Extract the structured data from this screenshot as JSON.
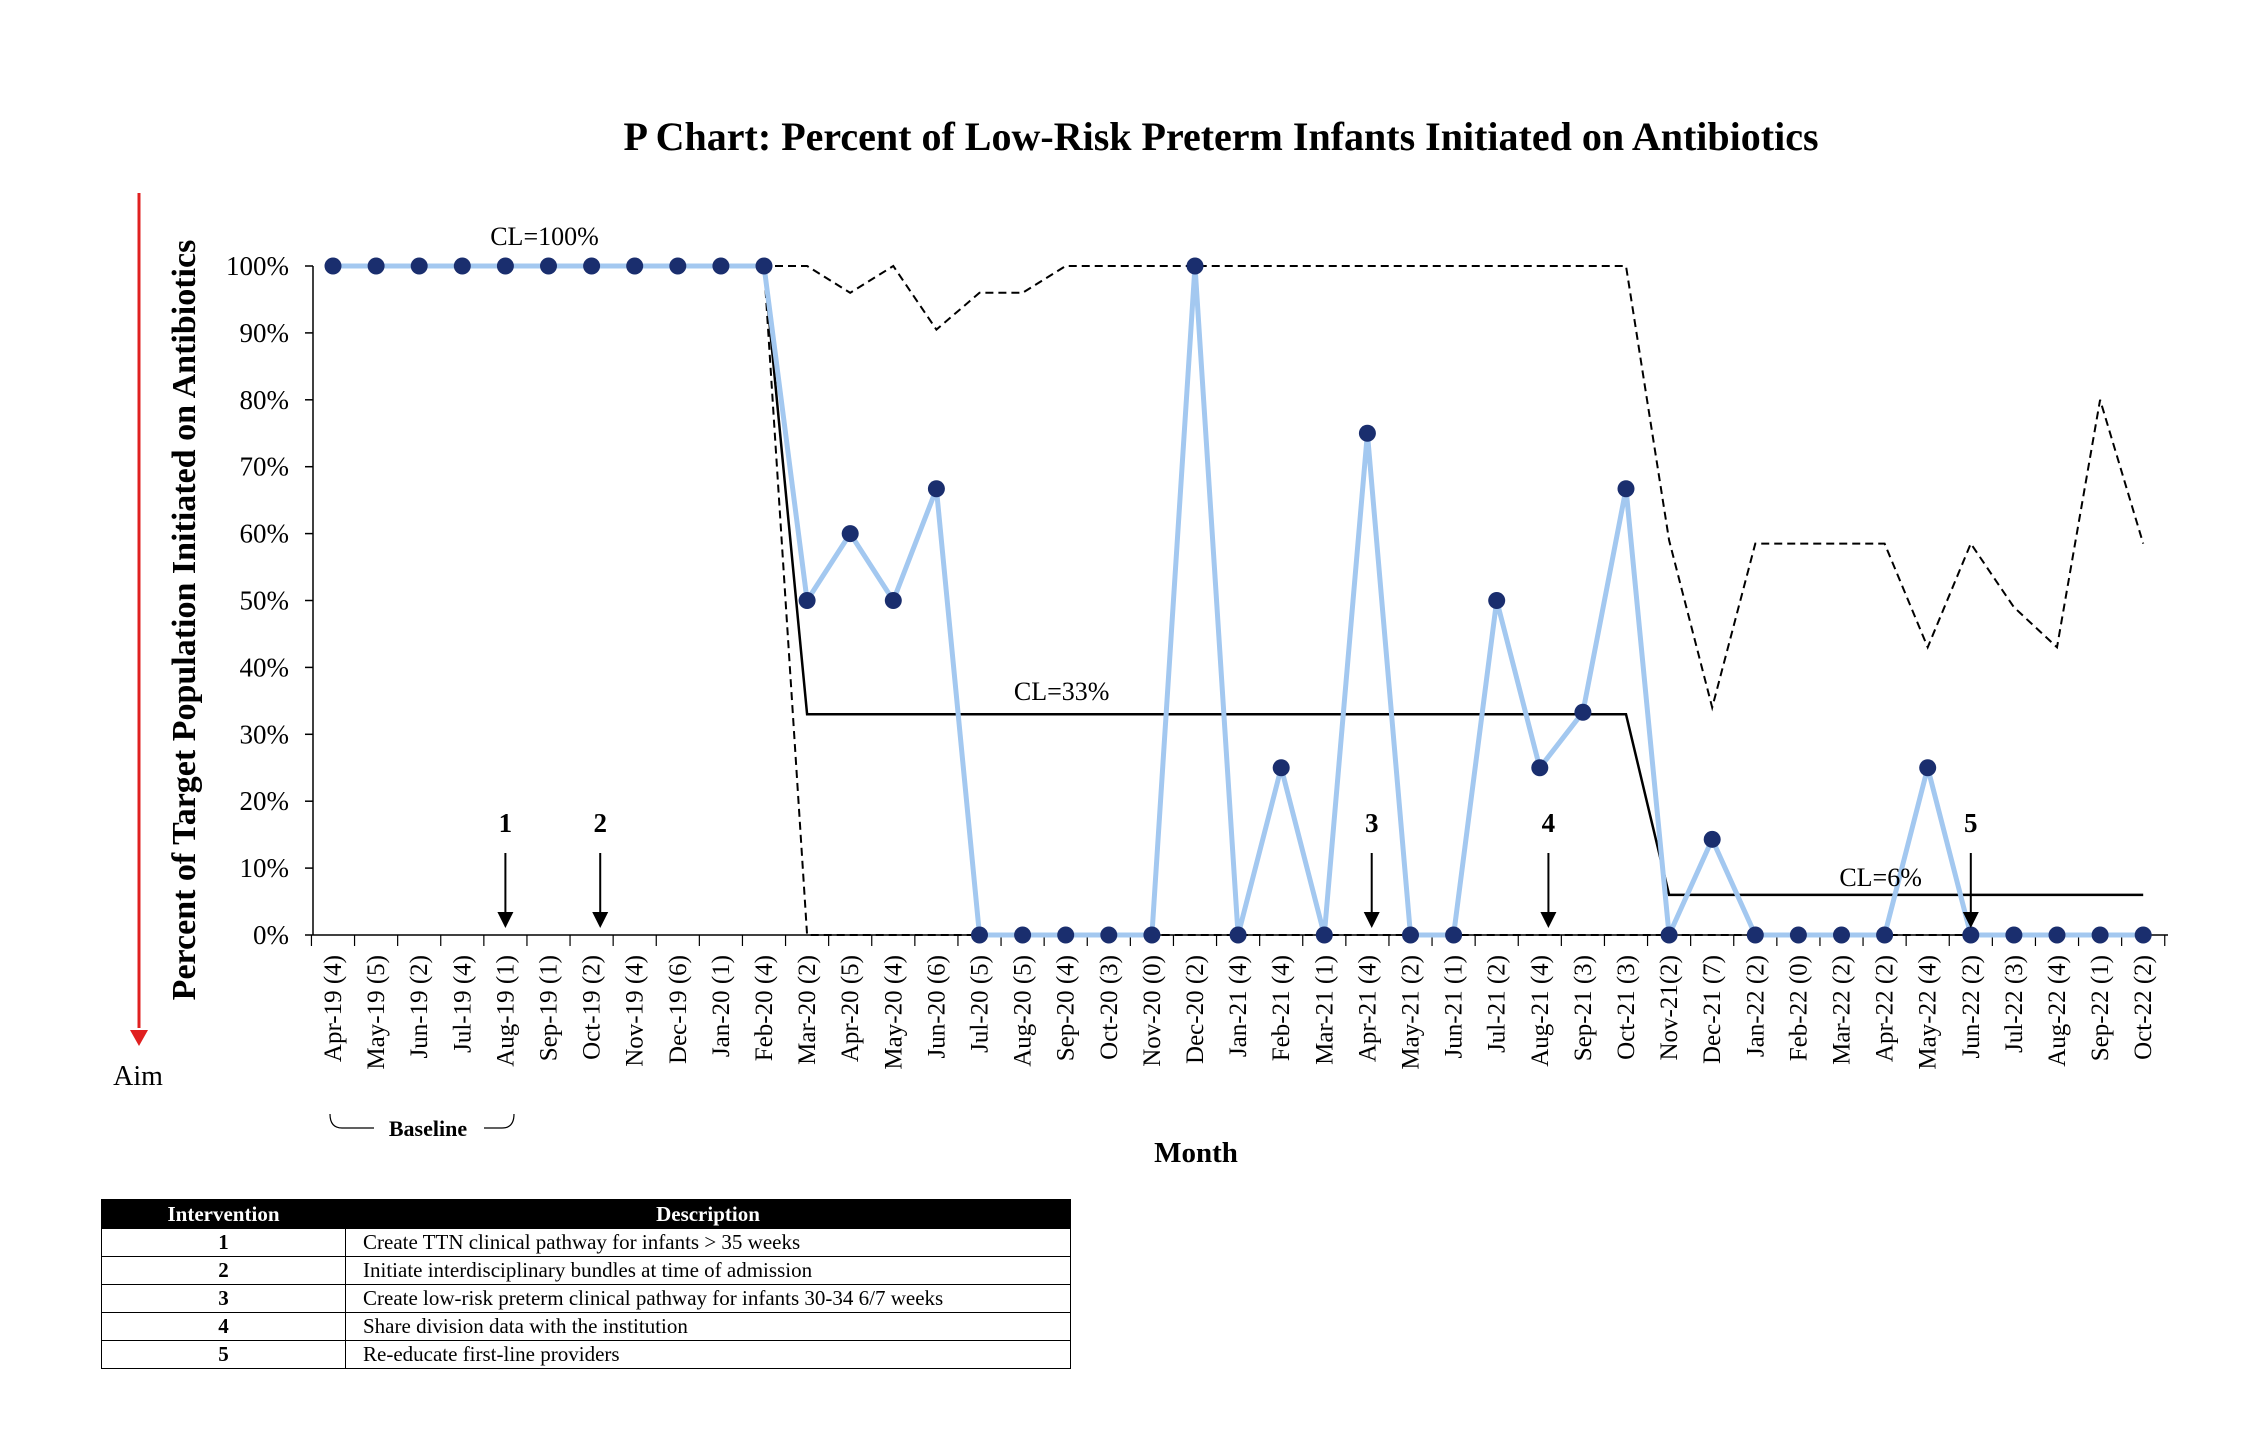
{
  "chart_data": {
    "type": "line",
    "title": "P Chart: Percent of Low-Risk Preterm Infants Initiated on Antibiotics",
    "xlabel": "Month",
    "ylabel": "Percent of  Target Population Initiated on Antibiotics",
    "ylim": [
      0,
      100
    ],
    "yticks": [
      "0%",
      "10%",
      "20%",
      "30%",
      "40%",
      "50%",
      "60%",
      "70%",
      "80%",
      "90%",
      "100%"
    ],
    "categories": [
      "Apr-19 (4)",
      "May-19 (5)",
      "Jun-19 (2)",
      "Jul-19 (4)",
      "Aug-19 (1)",
      "Sep-19 (1)",
      "Oct-19 (2)",
      "Nov-19 (4)",
      "Dec-19 (6)",
      "Jan-20 (1)",
      "Feb-20 (4)",
      "Mar-20 (2)",
      "Apr-20 (5)",
      "May-20 (4)",
      "Jun-20 (6)",
      "Jul-20 (5)",
      "Aug-20 (5)",
      "Sep-20 (4)",
      "Oct-20 (3)",
      "Nov-20 (0)",
      "Dec-20 (2)",
      "Jan-21 (4)",
      "Feb-21 (4)",
      "Mar-21 (1)",
      "Apr-21 (4)",
      "May-21 (2)",
      "Jun-21 (1)",
      "Jul-21 (2)",
      "Aug-21 (4)",
      "Sep-21 (3)",
      "Oct-21 (3)",
      "Nov-21(2)",
      "Dec-21 (7)",
      "Jan-22 (2)",
      "Feb-22 (0)",
      "Mar-22 (2)",
      "Apr-22 (2)",
      "May-22 (4)",
      "Jun-22 (2)",
      "Jul-22 (3)",
      "Aug-22 (4)",
      "Sep-22 (1)",
      "Oct-22 (2)"
    ],
    "series": [
      {
        "role": "percent",
        "color": "#a3c8f0",
        "marker_color": "#1a2e6e",
        "values": [
          100,
          100,
          100,
          100,
          100,
          100,
          100,
          100,
          100,
          100,
          100,
          50,
          60,
          50,
          66.7,
          0,
          0,
          0,
          0,
          0,
          100,
          0,
          25,
          0,
          75,
          0,
          0,
          50,
          25,
          33.3,
          66.7,
          0,
          14.3,
          0,
          0,
          0,
          0,
          25,
          0,
          0,
          0,
          0,
          0
        ]
      },
      {
        "role": "center-line",
        "color": "#000000",
        "values": [
          100,
          100,
          100,
          100,
          100,
          100,
          100,
          100,
          100,
          100,
          100,
          33,
          33,
          33,
          33,
          33,
          33,
          33,
          33,
          33,
          33,
          33,
          33,
          33,
          33,
          33,
          33,
          33,
          33,
          33,
          33,
          6,
          6,
          6,
          6,
          6,
          6,
          6,
          6,
          6,
          6,
          6,
          6
        ]
      },
      {
        "role": "upper-control-limit",
        "color": "#000000",
        "dash": true,
        "values": [
          100,
          100,
          100,
          100,
          100,
          100,
          100,
          100,
          100,
          100,
          100,
          100,
          96,
          100,
          90.5,
          96,
          96,
          100,
          100,
          100,
          100,
          100,
          100,
          100,
          100,
          100,
          100,
          100,
          100,
          100,
          100,
          59,
          34,
          58.5,
          58.5,
          58.5,
          58.5,
          43,
          58.5,
          49,
          43,
          80,
          58.5
        ]
      },
      {
        "role": "lower-control-limit",
        "color": "#000000",
        "dash": true,
        "values": [
          100,
          100,
          100,
          100,
          100,
          100,
          100,
          100,
          100,
          100,
          100,
          0,
          0,
          0,
          0,
          0,
          0,
          0,
          0,
          0,
          0,
          0,
          0,
          0,
          0,
          0,
          0,
          0,
          0,
          0,
          0,
          0,
          0,
          0,
          0,
          0,
          0,
          0,
          0,
          0,
          0,
          0,
          0
        ]
      }
    ],
    "center_line_labels": [
      {
        "text": "CL=100%",
        "index": 5,
        "y": 104.5
      },
      {
        "text": "CL=33%",
        "index": 17,
        "y": 36.5
      },
      {
        "text": "CL=6%",
        "index": 36,
        "y": 8.7
      }
    ],
    "intervention_markers": [
      {
        "label": "1",
        "index": 4
      },
      {
        "label": "2",
        "index": 6.2
      },
      {
        "label": "3",
        "index": 24.1
      },
      {
        "label": "4",
        "index": 28.2
      },
      {
        "label": "5",
        "index": 38
      }
    ],
    "aim_label": "Aim",
    "aim_color": "#e02020",
    "baseline_label": "Baseline"
  },
  "table": {
    "headers": [
      "Intervention",
      "Description"
    ],
    "rows": [
      {
        "num": "1",
        "desc": "Create TTN clinical pathway for infants >  35 weeks"
      },
      {
        "num": "2",
        "desc": "Initiate interdisciplinary bundles at time of admission"
      },
      {
        "num": "3",
        "desc": "Create low-risk preterm clinical pathway for infants 30-34 6/7 weeks"
      },
      {
        "num": "4",
        "desc": "Share division data with the institution"
      },
      {
        "num": "5",
        "desc": "Re-educate first-line providers"
      }
    ]
  }
}
